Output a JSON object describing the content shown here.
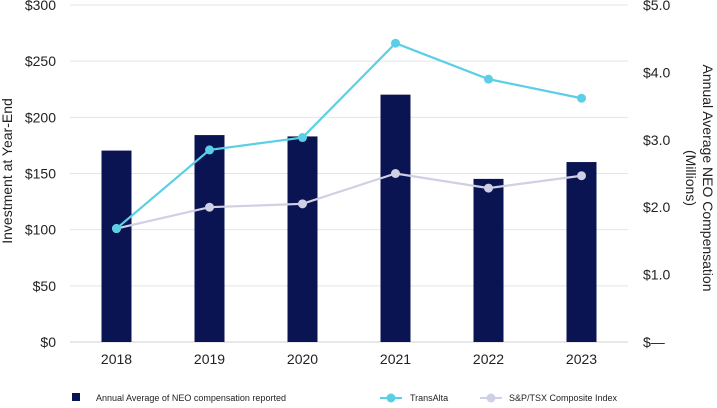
{
  "chart_data": {
    "type": "bar",
    "title": "",
    "categories": [
      "2018",
      "2019",
      "2020",
      "2021",
      "2022",
      "2023"
    ],
    "left_axis": {
      "label": "Investment at Year-End",
      "ylim": [
        0,
        300
      ],
      "ticks": [
        0,
        50,
        100,
        150,
        200,
        250,
        300
      ],
      "tick_labels": [
        "$0",
        "$50",
        "$100",
        "$150",
        "$200",
        "$250",
        "$300"
      ]
    },
    "right_axis": {
      "label_line1": "Annual Average NEO Compensation",
      "label_line2": "(Millions)",
      "ylim": [
        0,
        5.0
      ],
      "ticks": [
        0,
        1.0,
        2.0,
        3.0,
        4.0,
        5.0
      ],
      "tick_labels": [
        "$—",
        "$1.0",
        "$2.0",
        "$3.0",
        "$4.0",
        "$5.0"
      ]
    },
    "series": [
      {
        "name": "Annual Average of NEO compensation reported",
        "type": "bar",
        "axis": "right",
        "color": "#0b1452",
        "values": [
          2.84,
          3.07,
          3.05,
          3.67,
          2.42,
          2.67
        ]
      },
      {
        "name": "TransAlta",
        "type": "line",
        "axis": "left",
        "color": "#5bcfe6",
        "values": [
          101,
          171,
          182,
          266,
          234,
          217
        ]
      },
      {
        "name": "S&P/TSX Composite Index",
        "type": "line",
        "axis": "left",
        "color": "#cfd0e3",
        "values": [
          101,
          120,
          123,
          150,
          137,
          148
        ]
      }
    ]
  }
}
